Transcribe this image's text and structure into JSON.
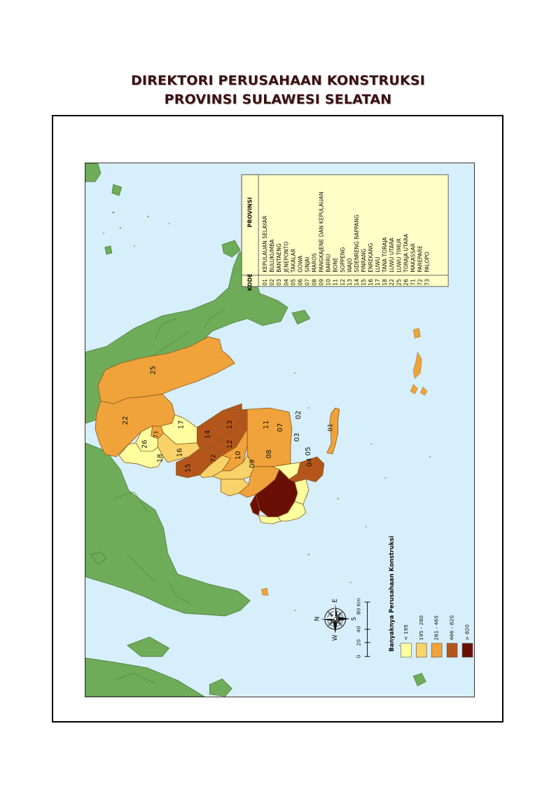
{
  "title_line1": "DIREKTORI PERUSAHAAN KONSTRUKSI",
  "title_line2": "PROVINSI SULAWESI SELATAN",
  "legend_table": {
    "header_kode": "KODE",
    "header_provinsi": "PROVINSI",
    "rows": [
      {
        "kode": "01",
        "name": "KEPULAUAN SELAYAR"
      },
      {
        "kode": "02",
        "name": "BULUKUMBA"
      },
      {
        "kode": "03",
        "name": "BANTAENG"
      },
      {
        "kode": "04",
        "name": "JENEPONTO"
      },
      {
        "kode": "05",
        "name": "TAKALAR"
      },
      {
        "kode": "06",
        "name": "GOWA"
      },
      {
        "kode": "07",
        "name": "SINJAI"
      },
      {
        "kode": "08",
        "name": "MAROS"
      },
      {
        "kode": "09",
        "name": "PANGKAJENE DAN KEPULAUAN"
      },
      {
        "kode": "10",
        "name": "BARRU"
      },
      {
        "kode": "11",
        "name": "BONE"
      },
      {
        "kode": "12",
        "name": "SOPPENG"
      },
      {
        "kode": "13",
        "name": "WAJO"
      },
      {
        "kode": "14",
        "name": "SIDENRENG RAPPANG"
      },
      {
        "kode": "15",
        "name": "PINRANG"
      },
      {
        "kode": "16",
        "name": "ENREKANG"
      },
      {
        "kode": "17",
        "name": "LUWU"
      },
      {
        "kode": "18",
        "name": "TANA TORAJA"
      },
      {
        "kode": "22",
        "name": "LUWU UTARA"
      },
      {
        "kode": "25",
        "name": "LUWU TIMUR"
      },
      {
        "kode": "26",
        "name": "TORAJA UTARA"
      },
      {
        "kode": "71",
        "name": "MAKASSAR"
      },
      {
        "kode": "72",
        "name": "PAREPARE"
      },
      {
        "kode": "73",
        "name": "PALOPO"
      }
    ]
  },
  "legend": {
    "title": "Banyaknya Perusahaan Konstruksi",
    "classes": [
      {
        "label": "< 195",
        "color": "#ffff9f"
      },
      {
        "label": "195 - 280",
        "color": "#f9d36a"
      },
      {
        "label": "281 - 465",
        "color": "#f0a33a"
      },
      {
        "label": "466 - 820",
        "color": "#b4561c"
      },
      {
        "label": "> 820",
        "color": "#6a0f06"
      }
    ]
  },
  "scalebar": {
    "ticks": [
      "0",
      "20",
      "40",
      "80 Km"
    ]
  },
  "compass": {
    "n": "N",
    "s": "S",
    "e": "E",
    "w": "W"
  },
  "region_labels": {
    "r01": "01",
    "r02": "02",
    "r03": "03",
    "r04": "04",
    "r05": "05",
    "r07": "07",
    "r08": "08",
    "r09": "09",
    "r10": "10",
    "r11": "11",
    "r12": "12",
    "r13": "13",
    "r14": "14",
    "r15": "15",
    "r16": "16",
    "r17": "17",
    "r18": "18",
    "r22": "22",
    "r25": "25",
    "r26": "26",
    "r72": "72",
    "r73": "73"
  },
  "colors": {
    "sea": "#d7effa",
    "land": "#6fac5a",
    "land_border": "#4d7f3d"
  }
}
